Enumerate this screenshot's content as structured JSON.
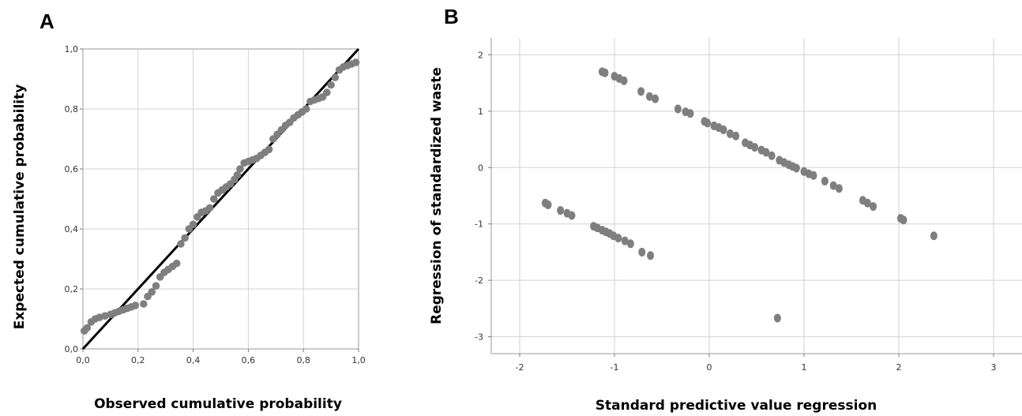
{
  "panels": {
    "a_label": "A",
    "b_label": "B"
  },
  "colors": {
    "point": "#7f7f7f",
    "line": "#000000",
    "grid": "#d2d2d2"
  },
  "chart_data": [
    {
      "type": "scatter",
      "panel": "A",
      "xlabel": "Observed cumulative probability",
      "ylabel": "Expected cumulative probability",
      "xlim": [
        0,
        1
      ],
      "ylim": [
        0,
        1
      ],
      "xticks": [
        "0,0",
        "0,2",
        "0,4",
        "0,6",
        "0,8",
        "1,0"
      ],
      "yticks": [
        "0,0",
        "0,2",
        "0,4",
        "0,6",
        "0,8",
        "1,0"
      ],
      "reference_line": {
        "from": [
          0,
          0
        ],
        "to": [
          1,
          1
        ]
      },
      "grid": true,
      "points": [
        [
          0.005,
          0.06
        ],
        [
          0.015,
          0.07
        ],
        [
          0.03,
          0.09
        ],
        [
          0.045,
          0.1
        ],
        [
          0.06,
          0.105
        ],
        [
          0.08,
          0.11
        ],
        [
          0.1,
          0.115
        ],
        [
          0.115,
          0.12
        ],
        [
          0.13,
          0.125
        ],
        [
          0.145,
          0.13
        ],
        [
          0.16,
          0.135
        ],
        [
          0.175,
          0.14
        ],
        [
          0.19,
          0.145
        ],
        [
          0.22,
          0.15
        ],
        [
          0.235,
          0.175
        ],
        [
          0.25,
          0.19
        ],
        [
          0.265,
          0.21
        ],
        [
          0.28,
          0.24
        ],
        [
          0.295,
          0.255
        ],
        [
          0.31,
          0.265
        ],
        [
          0.325,
          0.275
        ],
        [
          0.34,
          0.285
        ],
        [
          0.355,
          0.35
        ],
        [
          0.37,
          0.37
        ],
        [
          0.385,
          0.4
        ],
        [
          0.4,
          0.415
        ],
        [
          0.415,
          0.44
        ],
        [
          0.43,
          0.455
        ],
        [
          0.445,
          0.46
        ],
        [
          0.46,
          0.47
        ],
        [
          0.475,
          0.5
        ],
        [
          0.49,
          0.52
        ],
        [
          0.505,
          0.53
        ],
        [
          0.52,
          0.54
        ],
        [
          0.535,
          0.55
        ],
        [
          0.55,
          0.565
        ],
        [
          0.56,
          0.58
        ],
        [
          0.57,
          0.6
        ],
        [
          0.585,
          0.62
        ],
        [
          0.6,
          0.625
        ],
        [
          0.615,
          0.63
        ],
        [
          0.63,
          0.635
        ],
        [
          0.645,
          0.645
        ],
        [
          0.66,
          0.655
        ],
        [
          0.675,
          0.665
        ],
        [
          0.69,
          0.7
        ],
        [
          0.705,
          0.715
        ],
        [
          0.72,
          0.73
        ],
        [
          0.735,
          0.745
        ],
        [
          0.75,
          0.755
        ],
        [
          0.765,
          0.77
        ],
        [
          0.78,
          0.78
        ],
        [
          0.795,
          0.79
        ],
        [
          0.81,
          0.8
        ],
        [
          0.825,
          0.825
        ],
        [
          0.84,
          0.83
        ],
        [
          0.855,
          0.835
        ],
        [
          0.87,
          0.84
        ],
        [
          0.885,
          0.855
        ],
        [
          0.9,
          0.88
        ],
        [
          0.915,
          0.905
        ],
        [
          0.93,
          0.93
        ],
        [
          0.945,
          0.94
        ],
        [
          0.96,
          0.945
        ],
        [
          0.975,
          0.95
        ],
        [
          0.99,
          0.955
        ]
      ]
    },
    {
      "type": "scatter",
      "panel": "B",
      "xlabel": "Standard predictive value regression",
      "ylabel": "Regression of standardized waste",
      "xlim": [
        -2.3,
        3.3
      ],
      "ylim": [
        -3.3,
        2.3
      ],
      "xticks": [
        "-2",
        "-1",
        "0",
        "1",
        "2",
        "3"
      ],
      "yticks": [
        "2",
        "1",
        "0",
        "-1",
        "-2",
        "-3"
      ],
      "grid": true,
      "points": [
        [
          -1.13,
          1.7
        ],
        [
          -1.1,
          1.68
        ],
        [
          -1.0,
          1.62
        ],
        [
          -0.95,
          1.58
        ],
        [
          -0.9,
          1.54
        ],
        [
          -0.72,
          1.35
        ],
        [
          -0.63,
          1.26
        ],
        [
          -0.57,
          1.22
        ],
        [
          -0.33,
          1.04
        ],
        [
          -0.25,
          0.99
        ],
        [
          -0.2,
          0.96
        ],
        [
          -0.05,
          0.82
        ],
        [
          -0.02,
          0.79
        ],
        [
          0.05,
          0.74
        ],
        [
          0.1,
          0.71
        ],
        [
          0.15,
          0.67
        ],
        [
          0.22,
          0.6
        ],
        [
          0.28,
          0.56
        ],
        [
          0.38,
          0.44
        ],
        [
          0.43,
          0.4
        ],
        [
          0.48,
          0.36
        ],
        [
          0.55,
          0.31
        ],
        [
          0.6,
          0.27
        ],
        [
          0.66,
          0.21
        ],
        [
          0.74,
          0.13
        ],
        [
          0.79,
          0.09
        ],
        [
          0.84,
          0.05
        ],
        [
          0.88,
          0.02
        ],
        [
          0.92,
          -0.01
        ],
        [
          1.0,
          -0.07
        ],
        [
          1.05,
          -0.11
        ],
        [
          1.1,
          -0.14
        ],
        [
          1.22,
          -0.24
        ],
        [
          1.31,
          -0.32
        ],
        [
          1.37,
          -0.37
        ],
        [
          1.62,
          -0.58
        ],
        [
          1.67,
          -0.63
        ],
        [
          1.73,
          -0.69
        ],
        [
          2.02,
          -0.9
        ],
        [
          2.05,
          -0.93
        ],
        [
          2.37,
          -1.21
        ],
        [
          -1.73,
          -0.63
        ],
        [
          -1.7,
          -0.66
        ],
        [
          -1.57,
          -0.76
        ],
        [
          -1.5,
          -0.81
        ],
        [
          -1.45,
          -0.85
        ],
        [
          -1.22,
          -1.04
        ],
        [
          -1.18,
          -1.07
        ],
        [
          -1.13,
          -1.11
        ],
        [
          -1.09,
          -1.14
        ],
        [
          -1.05,
          -1.17
        ],
        [
          -1.01,
          -1.21
        ],
        [
          -0.96,
          -1.25
        ],
        [
          -0.89,
          -1.3
        ],
        [
          -0.83,
          -1.35
        ],
        [
          -0.71,
          -1.5
        ],
        [
          -0.62,
          -1.56
        ],
        [
          0.72,
          -2.67
        ]
      ]
    }
  ]
}
